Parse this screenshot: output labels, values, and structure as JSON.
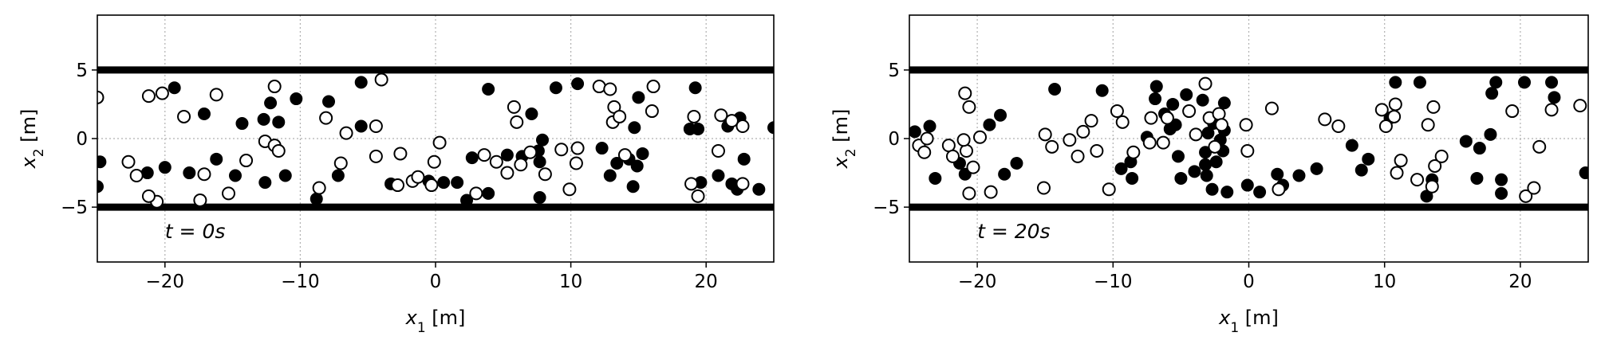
{
  "chart_data": [
    {
      "type": "scatter",
      "title": "",
      "xlabel": "x₁ [m]",
      "ylabel": "x₂ [m]",
      "xlim": [
        -25,
        25
      ],
      "ylim": [
        -9,
        9
      ],
      "xticks": [
        -20,
        -10,
        0,
        10,
        20
      ],
      "yticks": [
        -5,
        0,
        5
      ],
      "grid": true,
      "walls": [
        -5,
        5
      ],
      "annotation": "t = 0s",
      "series": [
        {
          "marker": "filled",
          "color": "#000000",
          "points": [
            [
              -19.3,
              3.7
            ],
            [
              -12.7,
              1.4
            ],
            [
              -12.2,
              2.6
            ],
            [
              -11.6,
              1.2
            ],
            [
              -10.3,
              2.9
            ],
            [
              -7.9,
              2.7
            ],
            [
              -5.5,
              4.1
            ],
            [
              -5.5,
              0.9
            ],
            [
              -16.2,
              -1.5
            ],
            [
              -14.8,
              -2.7
            ],
            [
              -12.6,
              -3.2
            ],
            [
              -11.1,
              -2.7
            ],
            [
              -8.8,
              -4.4
            ],
            [
              -7.2,
              -2.7
            ],
            [
              -3.3,
              -3.3
            ],
            [
              -20.0,
              -2.1
            ],
            [
              -21.3,
              -2.5
            ],
            [
              -24.8,
              -1.7
            ],
            [
              -25.0,
              -3.5
            ],
            [
              -14.3,
              1.1
            ],
            [
              -18.2,
              -2.5
            ],
            [
              -0.5,
              -3.1
            ],
            [
              0.6,
              -3.2
            ],
            [
              1.6,
              -3.2
            ],
            [
              2.3,
              -4.5
            ],
            [
              2.7,
              -1.4
            ],
            [
              3.9,
              3.6
            ],
            [
              3.9,
              -4.0
            ],
            [
              5.3,
              -1.2
            ],
            [
              6.4,
              -1.3
            ],
            [
              7.1,
              1.8
            ],
            [
              7.6,
              -0.9
            ],
            [
              7.7,
              -1.7
            ],
            [
              7.7,
              -4.3
            ],
            [
              7.9,
              -0.1
            ],
            [
              8.9,
              3.7
            ],
            [
              10.5,
              4.0
            ],
            [
              12.3,
              -0.7
            ],
            [
              12.9,
              -2.7
            ],
            [
              13.4,
              -1.8
            ],
            [
              14.3,
              -1.5
            ],
            [
              14.6,
              -3.5
            ],
            [
              14.7,
              0.8
            ],
            [
              14.9,
              -2.0
            ],
            [
              15.0,
              3.0
            ],
            [
              15.3,
              -1.1
            ],
            [
              18.8,
              0.7
            ],
            [
              19.2,
              3.7
            ],
            [
              19.4,
              0.7
            ],
            [
              19.6,
              -3.2
            ],
            [
              20.9,
              -2.7
            ],
            [
              21.6,
              0.9
            ],
            [
              21.9,
              -3.3
            ],
            [
              22.3,
              -3.7
            ],
            [
              22.5,
              1.5
            ],
            [
              22.8,
              -1.5
            ],
            [
              23.9,
              -3.7
            ],
            [
              25.0,
              0.8
            ],
            [
              -17.1,
              1.8
            ]
          ]
        },
        {
          "marker": "open",
          "color": "#000000",
          "points": [
            [
              -25.0,
              3.0
            ],
            [
              -21.2,
              3.1
            ],
            [
              -20.2,
              3.3
            ],
            [
              -16.2,
              3.2
            ],
            [
              -11.9,
              3.8
            ],
            [
              -4.0,
              4.3
            ],
            [
              -18.6,
              1.6
            ],
            [
              -12.6,
              -0.2
            ],
            [
              -11.9,
              -0.5
            ],
            [
              -11.6,
              -0.9
            ],
            [
              -8.1,
              1.5
            ],
            [
              -6.6,
              0.4
            ],
            [
              -4.4,
              0.9
            ],
            [
              -7.0,
              -1.8
            ],
            [
              -8.6,
              -3.6
            ],
            [
              -4.4,
              -1.3
            ],
            [
              -14.0,
              -1.6
            ],
            [
              -15.3,
              -4.0
            ],
            [
              -17.4,
              -4.5
            ],
            [
              -17.1,
              -2.6
            ],
            [
              -20.6,
              -4.6
            ],
            [
              -21.2,
              -4.2
            ],
            [
              -22.7,
              -1.7
            ],
            [
              -22.1,
              -2.7
            ],
            [
              -2.6,
              -1.1
            ],
            [
              -2.8,
              -3.4
            ],
            [
              -1.7,
              -3.1
            ],
            [
              -1.3,
              -2.8
            ],
            [
              -0.3,
              -3.4
            ],
            [
              -0.1,
              -1.7
            ],
            [
              0.3,
              -0.3
            ],
            [
              3.0,
              -4.0
            ],
            [
              3.6,
              -1.2
            ],
            [
              4.5,
              -1.7
            ],
            [
              5.3,
              -2.5
            ],
            [
              5.8,
              2.3
            ],
            [
              6.0,
              1.2
            ],
            [
              6.3,
              -1.9
            ],
            [
              7.0,
              -1.0
            ],
            [
              8.1,
              -2.6
            ],
            [
              9.3,
              -0.8
            ],
            [
              9.9,
              -3.7
            ],
            [
              10.5,
              -0.7
            ],
            [
              10.4,
              -1.8
            ],
            [
              12.1,
              3.8
            ],
            [
              12.9,
              3.6
            ],
            [
              13.2,
              2.3
            ],
            [
              13.1,
              1.2
            ],
            [
              13.6,
              1.6
            ],
            [
              14.0,
              -1.2
            ],
            [
              16.1,
              3.8
            ],
            [
              16.0,
              2.0
            ],
            [
              18.9,
              -3.3
            ],
            [
              19.1,
              1.6
            ],
            [
              19.4,
              -4.2
            ],
            [
              20.9,
              -0.9
            ],
            [
              21.1,
              1.7
            ],
            [
              21.9,
              1.3
            ],
            [
              22.7,
              0.9
            ],
            [
              22.7,
              -3.3
            ]
          ]
        }
      ]
    },
    {
      "type": "scatter",
      "title": "",
      "xlabel": "x₁ [m]",
      "ylabel": "x₂ [m]",
      "xlim": [
        -25,
        25
      ],
      "ylim": [
        -9,
        9
      ],
      "xticks": [
        -20,
        -10,
        0,
        10,
        20
      ],
      "yticks": [
        -5,
        0,
        5
      ],
      "grid": true,
      "walls": [
        -5,
        5
      ],
      "annotation": "t = 20s",
      "series": [
        {
          "marker": "filled",
          "color": "#000000",
          "points": [
            [
              -24.6,
              0.5
            ],
            [
              -23.5,
              0.9
            ],
            [
              -23.1,
              -2.9
            ],
            [
              -21.3,
              -1.8
            ],
            [
              -20.9,
              -2.6
            ],
            [
              -19.1,
              1.0
            ],
            [
              -18.3,
              1.7
            ],
            [
              -18.0,
              -2.6
            ],
            [
              -17.1,
              -1.8
            ],
            [
              -14.3,
              3.6
            ],
            [
              -10.8,
              3.5
            ],
            [
              -9.4,
              -2.2
            ],
            [
              -8.7,
              -1.7
            ],
            [
              -8.6,
              -2.9
            ],
            [
              -7.5,
              0.1
            ],
            [
              -6.9,
              2.9
            ],
            [
              -6.8,
              3.8
            ],
            [
              -6.2,
              1.8
            ],
            [
              -5.8,
              0.7
            ],
            [
              -5.6,
              2.5
            ],
            [
              -5.4,
              1.0
            ],
            [
              -5.2,
              -1.3
            ],
            [
              -5.0,
              -2.9
            ],
            [
              -4.6,
              3.2
            ],
            [
              -4.0,
              -2.4
            ],
            [
              -3.4,
              2.8
            ],
            [
              -3.2,
              -1.0
            ],
            [
              -3.2,
              -1.9
            ],
            [
              -3.1,
              -2.7
            ],
            [
              -3.0,
              0.4
            ],
            [
              -2.7,
              -3.7
            ],
            [
              -2.6,
              1.1
            ],
            [
              -2.4,
              -1.7
            ],
            [
              -2.1,
              -0.1
            ],
            [
              -1.9,
              -0.9
            ],
            [
              -1.8,
              0.6
            ],
            [
              -1.8,
              2.6
            ],
            [
              -1.6,
              -3.9
            ],
            [
              -0.1,
              -3.4
            ],
            [
              0.8,
              -3.9
            ],
            [
              2.1,
              -2.6
            ],
            [
              2.5,
              -3.4
            ],
            [
              3.7,
              -2.7
            ],
            [
              5.0,
              -2.2
            ],
            [
              7.6,
              -0.5
            ],
            [
              8.3,
              -2.3
            ],
            [
              8.8,
              -1.5
            ],
            [
              10.4,
              1.5
            ],
            [
              10.8,
              4.1
            ],
            [
              12.6,
              4.1
            ],
            [
              13.1,
              -4.2
            ],
            [
              13.5,
              -3.0
            ],
            [
              16.0,
              -0.2
            ],
            [
              16.8,
              -2.9
            ],
            [
              17.0,
              -0.7
            ],
            [
              17.8,
              0.3
            ],
            [
              17.9,
              3.3
            ],
            [
              18.2,
              4.1
            ],
            [
              18.6,
              -3.0
            ],
            [
              18.6,
              -4.0
            ],
            [
              20.3,
              4.1
            ],
            [
              22.3,
              4.1
            ],
            [
              22.5,
              3.0
            ],
            [
              24.8,
              -2.5
            ]
          ]
        },
        {
          "marker": "open",
          "color": "#000000",
          "points": [
            [
              -24.3,
              -0.5
            ],
            [
              -23.9,
              -1.0
            ],
            [
              -23.7,
              0.0
            ],
            [
              -22.1,
              -0.5
            ],
            [
              -21.8,
              -1.3
            ],
            [
              -20.9,
              3.3
            ],
            [
              -20.6,
              2.3
            ],
            [
              -20.8,
              -0.9
            ],
            [
              -21.0,
              -0.1
            ],
            [
              -20.6,
              -4.0
            ],
            [
              -20.3,
              -2.1
            ],
            [
              -19.8,
              0.1
            ],
            [
              -19.0,
              -3.9
            ],
            [
              -15.0,
              0.3
            ],
            [
              -15.1,
              -3.6
            ],
            [
              -14.5,
              -0.6
            ],
            [
              -13.2,
              -0.1
            ],
            [
              -12.6,
              -1.3
            ],
            [
              -12.2,
              0.5
            ],
            [
              -11.6,
              1.3
            ],
            [
              -11.2,
              -0.9
            ],
            [
              -10.3,
              -3.7
            ],
            [
              -9.7,
              2.0
            ],
            [
              -9.3,
              1.2
            ],
            [
              -8.5,
              -1.0
            ],
            [
              -7.3,
              -0.3
            ],
            [
              -7.2,
              1.5
            ],
            [
              -6.3,
              -0.3
            ],
            [
              -6.0,
              1.5
            ],
            [
              -4.4,
              2.0
            ],
            [
              -3.9,
              0.3
            ],
            [
              -3.2,
              4.0
            ],
            [
              -2.9,
              1.5
            ],
            [
              -2.5,
              -0.6
            ],
            [
              -2.2,
              1.8
            ],
            [
              -2.0,
              1.0
            ],
            [
              -0.1,
              -0.9
            ],
            [
              -0.2,
              1.0
            ],
            [
              1.7,
              2.2
            ],
            [
              2.2,
              -3.7
            ],
            [
              5.6,
              1.4
            ],
            [
              6.6,
              0.9
            ],
            [
              9.8,
              2.1
            ],
            [
              10.1,
              0.9
            ],
            [
              10.7,
              1.6
            ],
            [
              10.8,
              2.5
            ],
            [
              10.9,
              -2.5
            ],
            [
              11.2,
              -1.6
            ],
            [
              12.4,
              -3.0
            ],
            [
              13.2,
              1.0
            ],
            [
              13.5,
              -3.5
            ],
            [
              13.6,
              2.3
            ],
            [
              13.7,
              -2.0
            ],
            [
              14.2,
              -1.3
            ],
            [
              19.4,
              2.0
            ],
            [
              20.4,
              -4.2
            ],
            [
              21.0,
              -3.6
            ],
            [
              21.4,
              -0.6
            ],
            [
              22.3,
              2.1
            ],
            [
              24.4,
              2.4
            ]
          ]
        }
      ]
    }
  ]
}
